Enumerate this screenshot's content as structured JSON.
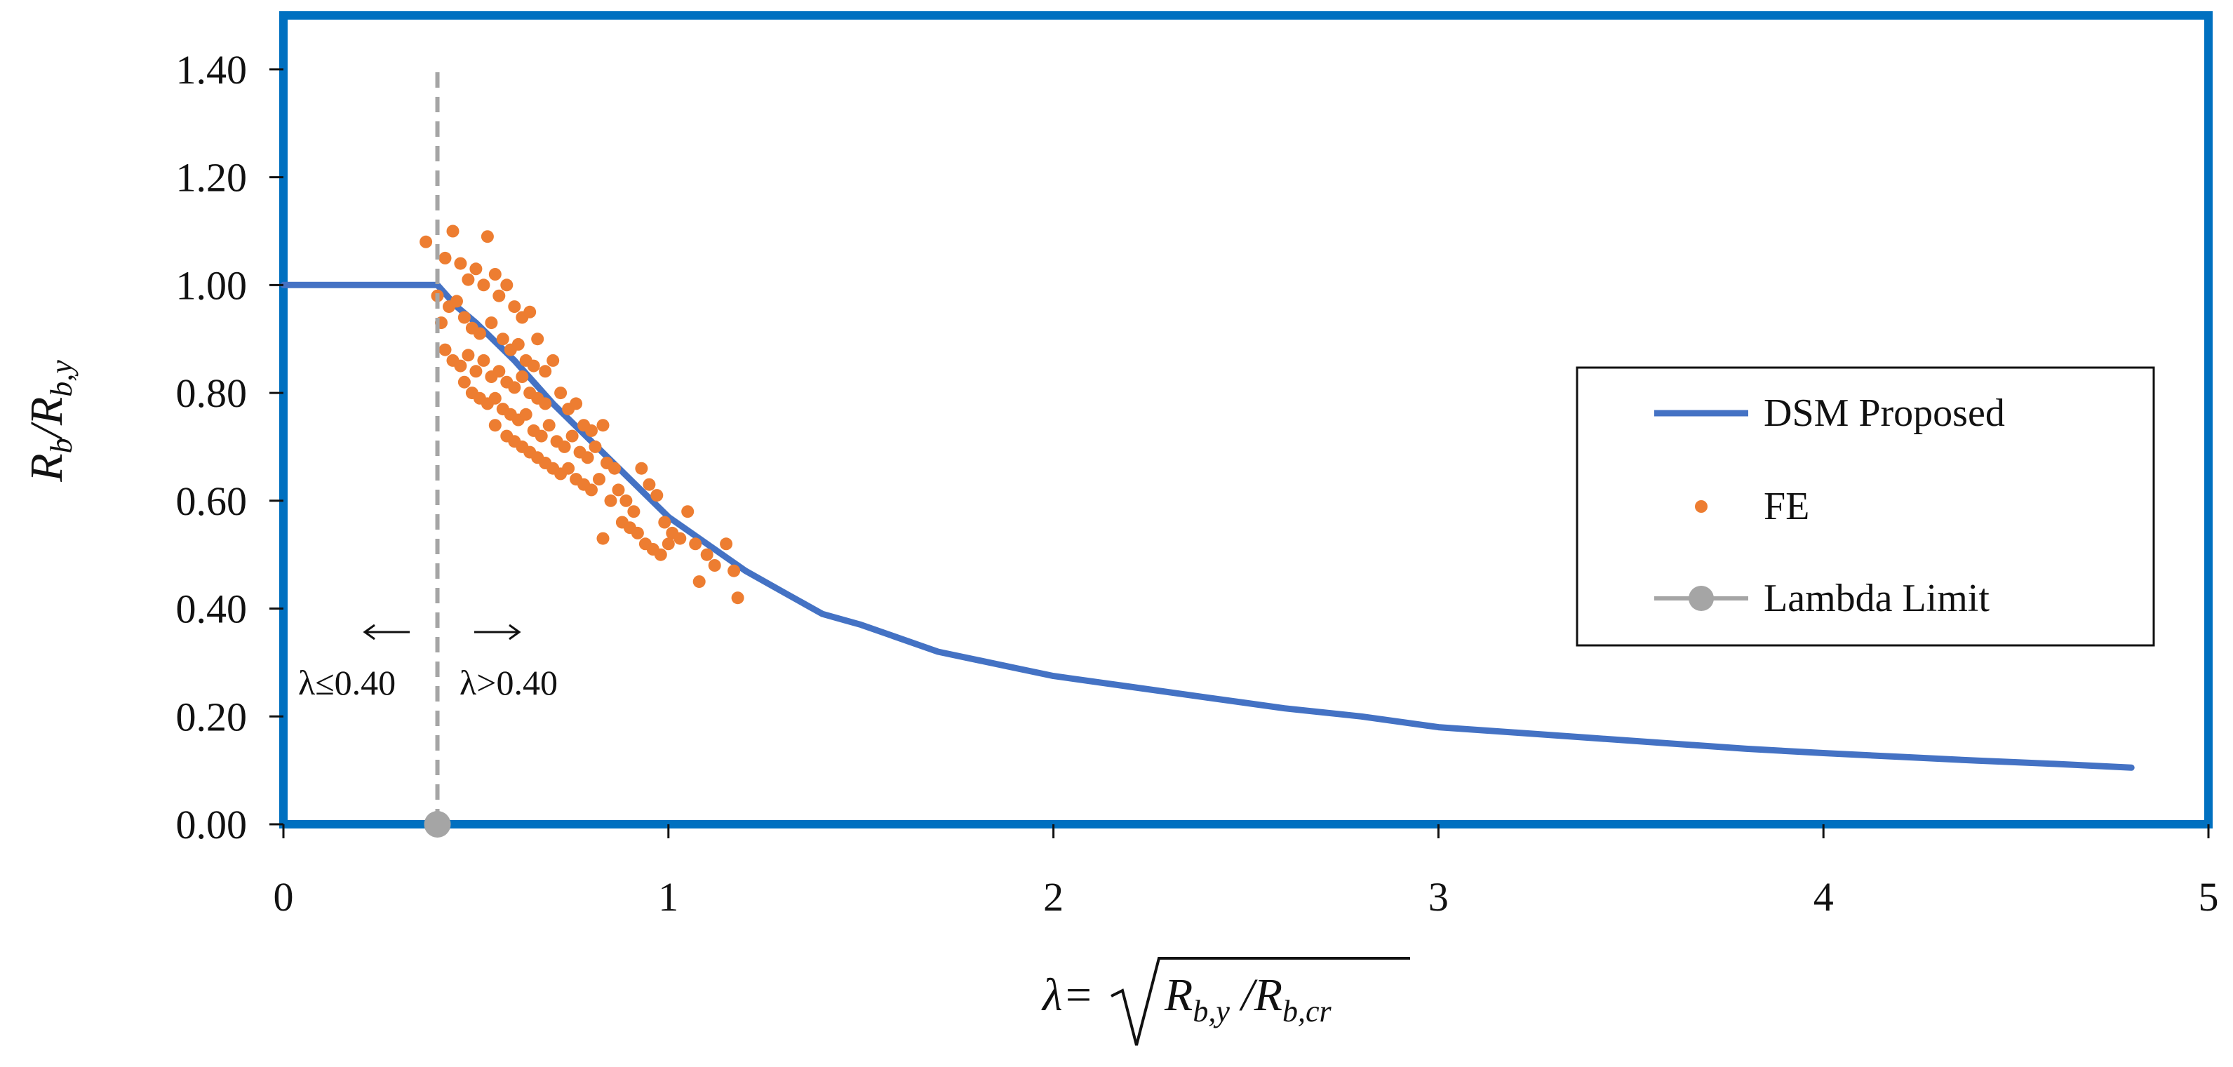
{
  "chart_data": {
    "type": "scatter",
    "title": "",
    "xlabel": "λ=√(R_b,y / R_b,cr)",
    "ylabel": "R_b/R_b,y",
    "xlim": [
      0,
      5
    ],
    "ylim": [
      0,
      1.5
    ],
    "x_ticks": [
      "0",
      "1",
      "2",
      "3",
      "4",
      "5"
    ],
    "y_ticks": [
      "0.00",
      "0.20",
      "0.40",
      "0.60",
      "0.80",
      "1.00",
      "1.20",
      "1.40"
    ],
    "grid": false,
    "legend_position": "right",
    "series": [
      {
        "name": "DSM Proposed",
        "kind": "line",
        "x": [
          0,
          0.1,
          0.2,
          0.3,
          0.4,
          0.45,
          0.5,
          0.6,
          0.7,
          0.8,
          0.9,
          1.0,
          1.1,
          1.2,
          1.3,
          1.4,
          1.5,
          1.7,
          1.9,
          2.0,
          2.2,
          2.4,
          2.6,
          2.8,
          3.0,
          3.2,
          3.4,
          3.6,
          3.8,
          4.0,
          4.2,
          4.4,
          4.6,
          4.8
        ],
        "y": [
          1.0,
          1.0,
          1.0,
          1.0,
          1.0,
          0.96,
          0.93,
          0.86,
          0.78,
          0.71,
          0.64,
          0.57,
          0.52,
          0.47,
          0.43,
          0.39,
          0.37,
          0.32,
          0.29,
          0.275,
          0.255,
          0.235,
          0.215,
          0.2,
          0.18,
          0.17,
          0.16,
          0.15,
          0.14,
          0.132,
          0.125,
          0.118,
          0.112,
          0.105
        ]
      },
      {
        "name": "FE",
        "kind": "scatter",
        "points": [
          [
            0.37,
            1.08
          ],
          [
            0.42,
            1.05
          ],
          [
            0.44,
            1.1
          ],
          [
            0.46,
            1.04
          ],
          [
            0.48,
            1.01
          ],
          [
            0.5,
            1.03
          ],
          [
            0.52,
            1.0
          ],
          [
            0.53,
            1.09
          ],
          [
            0.55,
            1.02
          ],
          [
            0.56,
            0.98
          ],
          [
            0.58,
            1.0
          ],
          [
            0.6,
            0.96
          ],
          [
            0.62,
            0.94
          ],
          [
            0.64,
            0.95
          ],
          [
            0.66,
            0.9
          ],
          [
            0.4,
            0.98
          ],
          [
            0.41,
            0.93
          ],
          [
            0.43,
            0.96
          ],
          [
            0.45,
            0.97
          ],
          [
            0.47,
            0.94
          ],
          [
            0.49,
            0.92
          ],
          [
            0.51,
            0.91
          ],
          [
            0.54,
            0.93
          ],
          [
            0.57,
            0.9
          ],
          [
            0.59,
            0.88
          ],
          [
            0.61,
            0.89
          ],
          [
            0.63,
            0.86
          ],
          [
            0.65,
            0.85
          ],
          [
            0.68,
            0.84
          ],
          [
            0.7,
            0.86
          ],
          [
            0.42,
            0.88
          ],
          [
            0.44,
            0.86
          ],
          [
            0.46,
            0.85
          ],
          [
            0.48,
            0.87
          ],
          [
            0.5,
            0.84
          ],
          [
            0.52,
            0.86
          ],
          [
            0.54,
            0.83
          ],
          [
            0.56,
            0.84
          ],
          [
            0.58,
            0.82
          ],
          [
            0.6,
            0.81
          ],
          [
            0.62,
            0.83
          ],
          [
            0.64,
            0.8
          ],
          [
            0.66,
            0.79
          ],
          [
            0.68,
            0.78
          ],
          [
            0.72,
            0.8
          ],
          [
            0.74,
            0.77
          ],
          [
            0.76,
            0.78
          ],
          [
            0.78,
            0.74
          ],
          [
            0.8,
            0.73
          ],
          [
            0.83,
            0.74
          ],
          [
            0.47,
            0.82
          ],
          [
            0.49,
            0.8
          ],
          [
            0.51,
            0.79
          ],
          [
            0.53,
            0.78
          ],
          [
            0.55,
            0.79
          ],
          [
            0.57,
            0.77
          ],
          [
            0.59,
            0.76
          ],
          [
            0.61,
            0.75
          ],
          [
            0.63,
            0.76
          ],
          [
            0.65,
            0.73
          ],
          [
            0.67,
            0.72
          ],
          [
            0.69,
            0.74
          ],
          [
            0.71,
            0.71
          ],
          [
            0.73,
            0.7
          ],
          [
            0.75,
            0.72
          ],
          [
            0.77,
            0.69
          ],
          [
            0.79,
            0.68
          ],
          [
            0.81,
            0.7
          ],
          [
            0.84,
            0.67
          ],
          [
            0.86,
            0.66
          ],
          [
            0.55,
            0.74
          ],
          [
            0.58,
            0.72
          ],
          [
            0.6,
            0.71
          ],
          [
            0.62,
            0.7
          ],
          [
            0.64,
            0.69
          ],
          [
            0.66,
            0.68
          ],
          [
            0.68,
            0.67
          ],
          [
            0.7,
            0.66
          ],
          [
            0.72,
            0.65
          ],
          [
            0.74,
            0.66
          ],
          [
            0.76,
            0.64
          ],
          [
            0.78,
            0.63
          ],
          [
            0.8,
            0.62
          ],
          [
            0.82,
            0.64
          ],
          [
            0.85,
            0.6
          ],
          [
            0.87,
            0.62
          ],
          [
            0.89,
            0.6
          ],
          [
            0.91,
            0.58
          ],
          [
            0.93,
            0.66
          ],
          [
            0.95,
            0.63
          ],
          [
            0.97,
            0.61
          ],
          [
            0.99,
            0.56
          ],
          [
            1.01,
            0.54
          ],
          [
            1.03,
            0.53
          ],
          [
            1.05,
            0.58
          ],
          [
            1.07,
            0.52
          ],
          [
            1.1,
            0.5
          ],
          [
            1.12,
            0.48
          ],
          [
            1.15,
            0.52
          ],
          [
            1.17,
            0.47
          ],
          [
            0.88,
            0.56
          ],
          [
            0.9,
            0.55
          ],
          [
            0.92,
            0.54
          ],
          [
            0.94,
            0.52
          ],
          [
            0.96,
            0.51
          ],
          [
            0.98,
            0.5
          ],
          [
            1.0,
            0.52
          ],
          [
            1.08,
            0.45
          ],
          [
            1.18,
            0.42
          ],
          [
            0.83,
            0.53
          ]
        ]
      },
      {
        "name": "Lambda Limit",
        "kind": "line",
        "x": [
          0.4,
          0.4
        ],
        "y": [
          0.0,
          1.4
        ]
      }
    ],
    "annotations": {
      "left_label": "λ≤0.40",
      "right_label": "λ>0.40"
    },
    "colors": {
      "dsm": "#4472C4",
      "fe": "#ED7D31",
      "limit": "#A5A5A5",
      "frame": "#0070C0"
    }
  }
}
